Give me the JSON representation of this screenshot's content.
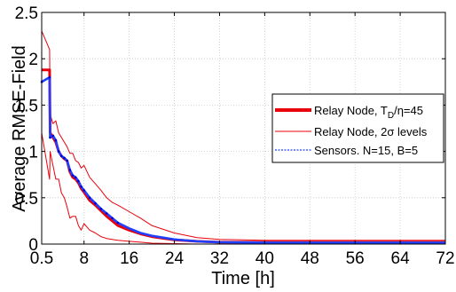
{
  "chart_data": {
    "type": "line",
    "title": "",
    "xlabel": "Time [h]",
    "ylabel": "Average RMSE-Field",
    "xlim": [
      0.5,
      72
    ],
    "ylim": [
      0,
      2.5
    ],
    "x_ticks": [
      0.5,
      8,
      16,
      24,
      32,
      40,
      48,
      56,
      64,
      72
    ],
    "x_tick_labels": [
      "0.5",
      "8",
      "16",
      "24",
      "32",
      "40",
      "48",
      "56",
      "64",
      "72"
    ],
    "y_ticks": [
      0,
      0.5,
      1,
      1.5,
      2,
      2.5
    ],
    "y_tick_labels": [
      "0",
      "0.5",
      "1",
      "1.5",
      "2",
      "2.5"
    ],
    "grid": true,
    "legend_position": "right",
    "legend": {
      "relay_prefix": "Relay Node, T",
      "relay_sub": "D",
      "relay_suffix": "/η=45",
      "band": "Relay Node, 2σ levels",
      "sensors": "Sensors. N=15, B=5"
    },
    "colors": {
      "relay": "#e8000b",
      "band": "#e8000b",
      "sensors": "#1f3fff",
      "sensor_markers": "#0000cc"
    },
    "series": [
      {
        "key": "relay",
        "x": [
          0.5,
          1.9,
          2.0,
          2.5,
          3,
          3.5,
          4,
          4.5,
          5,
          5.5,
          6,
          6.5,
          7,
          7.5,
          8,
          9,
          10,
          11,
          12,
          13,
          14,
          16,
          18,
          20,
          24,
          28,
          32,
          40,
          48,
          56,
          64,
          72
        ],
        "y": [
          1.88,
          1.88,
          1.2,
          1.15,
          1.1,
          1.0,
          0.95,
          0.92,
          0.9,
          0.78,
          0.72,
          0.7,
          0.66,
          0.6,
          0.56,
          0.47,
          0.42,
          0.36,
          0.3,
          0.25,
          0.2,
          0.15,
          0.11,
          0.08,
          0.045,
          0.03,
          0.02,
          0.02,
          0.02,
          0.02,
          0.02,
          0.02
        ]
      },
      {
        "key": "band_upper",
        "x": [
          0.5,
          1.9,
          2.0,
          2.5,
          3,
          3.5,
          4,
          4.5,
          5,
          5.5,
          6,
          6.5,
          7,
          7.5,
          8,
          9,
          10,
          11,
          12,
          13,
          14,
          16,
          18,
          20,
          24,
          28,
          32,
          40,
          48,
          56,
          64,
          72
        ],
        "y": [
          2.3,
          2.1,
          1.4,
          1.3,
          1.33,
          1.2,
          1.15,
          1.1,
          1.05,
          0.98,
          0.98,
          0.9,
          0.88,
          0.82,
          0.85,
          0.72,
          0.65,
          0.58,
          0.5,
          0.45,
          0.42,
          0.35,
          0.28,
          0.2,
          0.12,
          0.07,
          0.05,
          0.04,
          0.04,
          0.04,
          0.04,
          0.04
        ]
      },
      {
        "key": "band_lower",
        "x": [
          0.5,
          1.9,
          2.0,
          2.5,
          3,
          3.5,
          4,
          4.5,
          5,
          5.5,
          6,
          6.5,
          7,
          7.5,
          8,
          9,
          10,
          11,
          12,
          13,
          14,
          16,
          18,
          20,
          24,
          28,
          32,
          40,
          48,
          56,
          64,
          72
        ],
        "y": [
          1.2,
          0.7,
          1.0,
          0.85,
          0.7,
          0.7,
          0.55,
          0.5,
          0.4,
          0.28,
          0.3,
          0.3,
          0.2,
          0.15,
          0.22,
          0.15,
          0.12,
          0.08,
          0.06,
          0.05,
          0.04,
          0.03,
          0.02,
          0.01,
          0.005,
          0,
          0,
          0,
          0,
          0,
          0,
          0
        ]
      },
      {
        "key": "sensors",
        "x": [
          0.5,
          1.9,
          2.0,
          2.5,
          3,
          3.5,
          4,
          4.5,
          5,
          5.5,
          6,
          6.5,
          7,
          7.5,
          8,
          9,
          10,
          11,
          12,
          13,
          14,
          16,
          18,
          20,
          24,
          28,
          32,
          40,
          48,
          56,
          64,
          72
        ],
        "y": [
          1.75,
          1.8,
          1.15,
          1.17,
          1.12,
          1.0,
          0.95,
          0.93,
          0.9,
          0.8,
          0.74,
          0.72,
          0.68,
          0.62,
          0.58,
          0.5,
          0.44,
          0.38,
          0.33,
          0.28,
          0.23,
          0.17,
          0.12,
          0.09,
          0.05,
          0.03,
          0.02,
          0.015,
          0.015,
          0.015,
          0.015,
          0.015
        ]
      }
    ]
  }
}
